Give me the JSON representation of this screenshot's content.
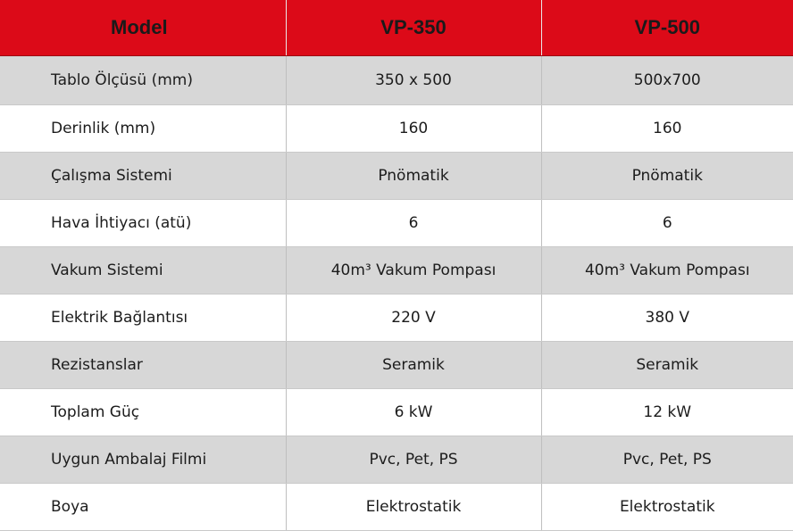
{
  "header": {
    "model_label": "Model",
    "col1": "VP-350",
    "col2": "VP-500"
  },
  "rows": [
    {
      "label": "Tablo Ölçüsü (mm)",
      "v1": "350 x 500",
      "v2": "500x700"
    },
    {
      "label": "Derinlik (mm)",
      "v1": "160",
      "v2": "160"
    },
    {
      "label": "Çalışma Sistemi",
      "v1": "Pnömatik",
      "v2": "Pnömatik"
    },
    {
      "label": "Hava İhtiyacı (atü)",
      "v1": "6",
      "v2": "6"
    },
    {
      "label": "Vakum Sistemi",
      "v1": "40m³ Vakum Pompası",
      "v2": "40m³ Vakum Pompası"
    },
    {
      "label": "Elektrik Bağlantısı",
      "v1": "220 V",
      "v2": "380 V"
    },
    {
      "label": "Rezistanslar",
      "v1": "Seramik",
      "v2": "Seramik"
    },
    {
      "label": "Toplam Güç",
      "v1": "6 kW",
      "v2": "12 kW"
    },
    {
      "label": "Uygun Ambalaj Filmi",
      "v1": "Pvc, Pet, PS",
      "v2": "Pvc, Pet, PS"
    },
    {
      "label": "Boya",
      "v1": "Elektrostatik",
      "v2": "Elektrostatik"
    }
  ],
  "colors": {
    "header_bg": "#dc0a18",
    "row_alt_bg": "#d7d7d7",
    "row_bg": "#ffffff"
  }
}
